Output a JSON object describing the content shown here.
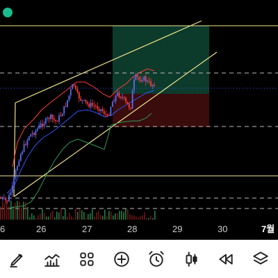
{
  "x_axis": {
    "labels": [
      "6",
      "26",
      "27",
      "28",
      "29",
      "30",
      "7월"
    ]
  },
  "colors": {
    "background": "#000000",
    "candle_up": "#5b6cf5",
    "candle_down": "#ff3b3b",
    "bollinger_upper": "#ff3b3b",
    "bollinger_mid": "#3355ff",
    "bollinger_lower": "#2e9b5a",
    "channel": "#f0e68c",
    "profit_zone": "#0d3b2b",
    "loss_zone": "#3a0c0c",
    "status": "#1abc8c"
  },
  "toolbar": {
    "tools": [
      {
        "name": "drawing-tool-icon"
      },
      {
        "name": "indicators-icon"
      },
      {
        "name": "templates-icon"
      },
      {
        "name": "add-icon"
      },
      {
        "name": "alert-icon"
      },
      {
        "name": "candle-style-icon"
      },
      {
        "name": "replay-icon"
      },
      {
        "name": "layers-icon"
      }
    ]
  }
}
